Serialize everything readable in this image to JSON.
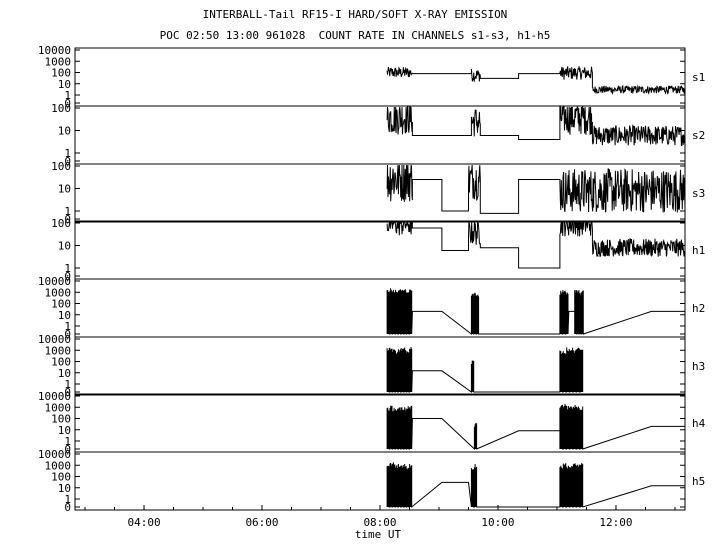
{
  "header": {
    "title": "INTERBALL-Tail RF15-I HARD/SOFT X-RAY EMISSION",
    "subtitle": "POC 02:50 13:00 961028  COUNT RATE IN CHANNELS s1-s3, h1-h5"
  },
  "chart_data": {
    "type": "line",
    "xlabel": "time UT",
    "x_range_hours": [
      2.83,
      13.17
    ],
    "x_ticks": [
      "04:00",
      "06:00",
      "08:00",
      "10:00",
      "12:00"
    ],
    "x_tick_hours": [
      4,
      6,
      8,
      10,
      12
    ],
    "y_scale": "log",
    "grid": false,
    "panels": [
      {
        "name": "s1",
        "ytick_labels": [
          "10000",
          "1000",
          "100",
          "10",
          "1",
          "0"
        ],
        "ytick_values": [
          10000,
          1000,
          100,
          10,
          1,
          0
        ],
        "segments": [
          {
            "type": "noise",
            "x": [
              8.12,
              8.55
            ],
            "center": 100,
            "spread": 0.5
          },
          {
            "type": "flat",
            "x": [
              8.55,
              9.55
            ],
            "value": 80
          },
          {
            "type": "noise",
            "x": [
              9.55,
              9.7
            ],
            "center": 60,
            "spread": 0.6
          },
          {
            "type": "flat",
            "x": [
              9.7,
              10.35
            ],
            "value": 30
          },
          {
            "type": "flat",
            "x": [
              10.35,
              11.05
            ],
            "value": 80
          },
          {
            "type": "noise",
            "x": [
              11.05,
              11.6
            ],
            "center": 90,
            "spread": 0.6
          },
          {
            "type": "noise",
            "x": [
              11.6,
              13.17
            ],
            "center": 3,
            "spread": 0.35
          }
        ]
      },
      {
        "name": "s2",
        "ytick_labels": [
          "100",
          "10",
          "1",
          "0"
        ],
        "ytick_values": [
          100,
          10,
          1,
          0
        ],
        "segments": [
          {
            "type": "noise",
            "x": [
              8.12,
              8.55
            ],
            "center": 40,
            "spread": 0.8
          },
          {
            "type": "flat",
            "x": [
              8.55,
              9.55
            ],
            "value": 6
          },
          {
            "type": "noise",
            "x": [
              9.55,
              9.7
            ],
            "center": 25,
            "spread": 0.7
          },
          {
            "type": "flat",
            "x": [
              9.7,
              10.35
            ],
            "value": 6
          },
          {
            "type": "flat",
            "x": [
              10.35,
              11.05
            ],
            "value": 4
          },
          {
            "type": "noise",
            "x": [
              11.05,
              11.6
            ],
            "center": 40,
            "spread": 0.8
          },
          {
            "type": "noise",
            "x": [
              11.6,
              13.17
            ],
            "center": 6,
            "spread": 0.45
          }
        ]
      },
      {
        "name": "s3",
        "ytick_labels": [
          "100",
          "10",
          "1",
          "0"
        ],
        "ytick_values": [
          100,
          10,
          1,
          0
        ],
        "segments": [
          {
            "type": "noise",
            "x": [
              8.12,
              8.55
            ],
            "center": 30,
            "spread": 1.1
          },
          {
            "type": "flat",
            "x": [
              8.55,
              9.05
            ],
            "value": 25
          },
          {
            "type": "flat",
            "x": [
              9.05,
              9.5
            ],
            "value": 1
          },
          {
            "type": "noise",
            "x": [
              9.5,
              9.7
            ],
            "center": 25,
            "spread": 0.9
          },
          {
            "type": "flat",
            "x": [
              9.7,
              10.35
            ],
            "value": 0.7
          },
          {
            "type": "flat",
            "x": [
              10.35,
              11.05
            ],
            "value": 25
          },
          {
            "type": "noise",
            "x": [
              11.05,
              13.17
            ],
            "center": 8,
            "spread": 1.0
          }
        ]
      },
      {
        "name": "h1",
        "ytick_labels": [
          "100",
          "10",
          "1",
          "0"
        ],
        "ytick_values": [
          100,
          10,
          1,
          0
        ],
        "segments": [
          {
            "type": "noise",
            "x": [
              8.12,
              8.55
            ],
            "center": 100,
            "spread": 0.6
          },
          {
            "type": "flat",
            "x": [
              8.55,
              9.05
            ],
            "value": 60
          },
          {
            "type": "flat",
            "x": [
              9.05,
              9.5
            ],
            "value": 6
          },
          {
            "type": "noise",
            "x": [
              9.5,
              9.7
            ],
            "center": 40,
            "spread": 0.6
          },
          {
            "type": "flat",
            "x": [
              9.7,
              10.35
            ],
            "value": 8
          },
          {
            "type": "flat",
            "x": [
              10.35,
              11.05
            ],
            "value": 1
          },
          {
            "type": "noise",
            "x": [
              11.05,
              11.6
            ],
            "center": 100,
            "spread": 0.6
          },
          {
            "type": "noise",
            "x": [
              11.6,
              13.17
            ],
            "center": 8,
            "spread": 0.4
          }
        ]
      },
      {
        "name": "h2",
        "ytick_labels": [
          "10000",
          "1000",
          "100",
          "10",
          "1",
          "0"
        ],
        "ytick_values": [
          10000,
          1000,
          100,
          10,
          1,
          0
        ],
        "segments": [
          {
            "type": "bursts",
            "x": [
              8.12,
              8.55
            ],
            "top": 2000,
            "count": 9
          },
          {
            "type": "flat",
            "x": [
              8.55,
              9.05
            ],
            "value": 20
          },
          {
            "type": "bursts",
            "x": [
              9.55,
              9.68
            ],
            "top": 1000,
            "count": 3
          },
          {
            "type": "bursts",
            "x": [
              11.05,
              11.2
            ],
            "top": 1500,
            "count": 3
          },
          {
            "type": "flat",
            "x": [
              11.2,
              11.3
            ],
            "value": 20
          },
          {
            "type": "bursts",
            "x": [
              11.3,
              11.45
            ],
            "top": 1500,
            "count": 4
          },
          {
            "type": "flat",
            "x": [
              12.6,
              13.17
            ],
            "value": 20
          }
        ]
      },
      {
        "name": "h3",
        "ytick_labels": [
          "10000",
          "1000",
          "100",
          "10",
          "1",
          "0"
        ],
        "ytick_values": [
          10000,
          1000,
          100,
          10,
          1,
          0
        ],
        "segments": [
          {
            "type": "bursts",
            "x": [
              8.12,
              8.55
            ],
            "top": 1500,
            "count": 9
          },
          {
            "type": "flat",
            "x": [
              8.55,
              9.05
            ],
            "value": 15
          },
          {
            "type": "bursts",
            "x": [
              9.55,
              9.6
            ],
            "top": 100,
            "count": 1
          },
          {
            "type": "bursts",
            "x": [
              11.05,
              11.45
            ],
            "top": 1500,
            "count": 7
          }
        ]
      },
      {
        "name": "h4",
        "ytick_labels": [
          "10000",
          "1000",
          "100",
          "10",
          "1",
          "0"
        ],
        "ytick_values": [
          10000,
          1000,
          100,
          10,
          1,
          0
        ],
        "segments": [
          {
            "type": "bursts",
            "x": [
              8.12,
              8.55
            ],
            "top": 1500,
            "count": 9
          },
          {
            "type": "flat",
            "x": [
              8.55,
              9.05
            ],
            "value": 100
          },
          {
            "type": "bursts",
            "x": [
              9.6,
              9.65
            ],
            "top": 50,
            "count": 1
          },
          {
            "type": "flat",
            "x": [
              10.35,
              11.05
            ],
            "value": 8
          },
          {
            "type": "bursts",
            "x": [
              11.05,
              11.45
            ],
            "top": 1500,
            "count": 7
          },
          {
            "type": "flat",
            "x": [
              12.6,
              13.17
            ],
            "value": 20
          }
        ]
      },
      {
        "name": "h5",
        "ytick_labels": [
          "10000",
          "1000",
          "100",
          "10",
          "1",
          "0"
        ],
        "ytick_values": [
          10000,
          1000,
          100,
          10,
          1,
          0
        ],
        "segments": [
          {
            "type": "bursts",
            "x": [
              8.12,
              8.55
            ],
            "top": 1500,
            "count": 9
          },
          {
            "type": "flat",
            "x": [
              9.05,
              9.5
            ],
            "value": 30
          },
          {
            "type": "bursts",
            "x": [
              9.55,
              9.65
            ],
            "top": 1000,
            "count": 2
          },
          {
            "type": "bursts",
            "x": [
              11.05,
              11.45
            ],
            "top": 1500,
            "count": 7
          },
          {
            "type": "flat",
            "x": [
              12.6,
              13.17
            ],
            "value": 15
          }
        ]
      }
    ]
  }
}
